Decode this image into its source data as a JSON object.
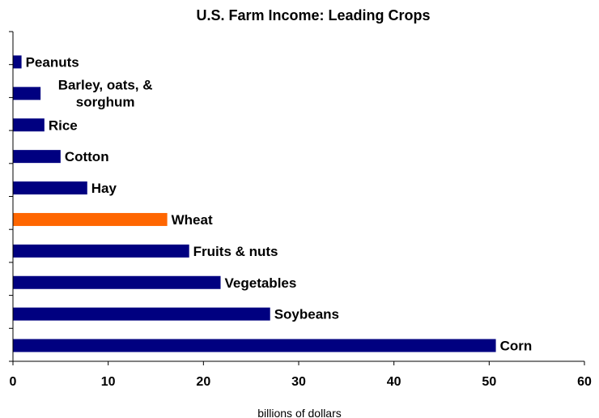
{
  "chart_data": {
    "type": "bar",
    "orientation": "horizontal",
    "title": "U.S. Farm Income:  Leading Crops",
    "xlabel": "billions of dollars",
    "ylabel": "",
    "xlim": [
      0,
      60
    ],
    "x_ticks": [
      "0",
      "10",
      "20",
      "30",
      "40",
      "50",
      "60"
    ],
    "grid": false,
    "legend": "none",
    "categories": [
      "Peanuts",
      "Barley, oats, & sorghum",
      "Rice",
      "Cotton",
      "Hay",
      "Wheat",
      "Fruits & nuts",
      "Vegetables",
      "Soybeans",
      "Corn"
    ],
    "category_label_lines": [
      [
        "Peanuts"
      ],
      [
        "Barley, oats, &",
        "sorghum"
      ],
      [
        "Rice"
      ],
      [
        "Cotton"
      ],
      [
        "Hay"
      ],
      [
        "Wheat"
      ],
      [
        "Fruits & nuts"
      ],
      [
        "Vegetables"
      ],
      [
        "Soybeans"
      ],
      [
        "Corn"
      ]
    ],
    "values": [
      0.9,
      2.9,
      3.3,
      5.0,
      7.8,
      16.2,
      18.5,
      21.8,
      27.0,
      50.7
    ],
    "colors": {
      "default": "#000080",
      "highlight": "#FF6600",
      "highlight_category": "Wheat"
    }
  }
}
